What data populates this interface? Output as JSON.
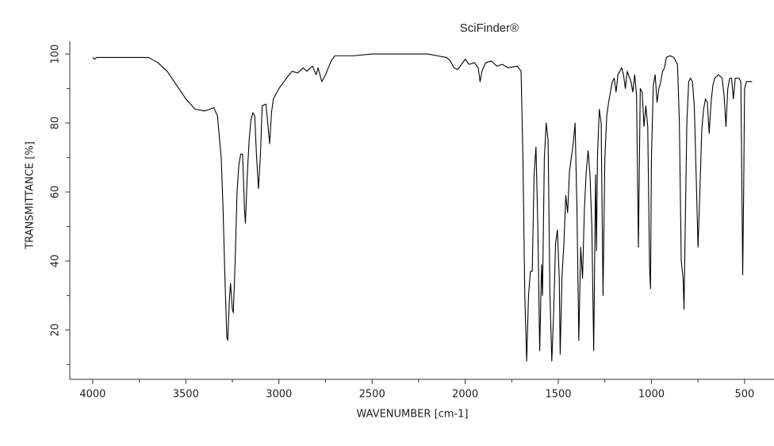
{
  "chart_data": {
    "type": "line",
    "title": "SciFinder®",
    "xlabel": "WAVENUMBER [cm-1]",
    "ylabel": "TRANSMITTANCE [%]",
    "x": [
      4000,
      3990,
      3980,
      3900,
      3800,
      3700,
      3650,
      3600,
      3550,
      3500,
      3450,
      3400,
      3370,
      3350,
      3330,
      3310,
      3300,
      3290,
      3280,
      3275,
      3265,
      3260,
      3250,
      3245,
      3235,
      3225,
      3215,
      3205,
      3195,
      3185,
      3180,
      3170,
      3160,
      3150,
      3140,
      3130,
      3120,
      3110,
      3100,
      3090,
      3070,
      3060,
      3050,
      3040,
      3030,
      3000,
      2960,
      2930,
      2900,
      2870,
      2850,
      2820,
      2800,
      2790,
      2770,
      2750,
      2720,
      2700,
      2600,
      2500,
      2400,
      2300,
      2200,
      2150,
      2100,
      2080,
      2060,
      2040,
      2020,
      2000,
      1980,
      1950,
      1930,
      1920,
      1910,
      1890,
      1860,
      1830,
      1800,
      1770,
      1720,
      1700,
      1690,
      1680,
      1670,
      1660,
      1650,
      1640,
      1630,
      1620,
      1610,
      1600,
      1590,
      1585,
      1575,
      1565,
      1555,
      1545,
      1535,
      1525,
      1515,
      1505,
      1495,
      1490,
      1480,
      1470,
      1460,
      1450,
      1440,
      1430,
      1420,
      1410,
      1400,
      1390,
      1380,
      1370,
      1360,
      1350,
      1340,
      1330,
      1320,
      1310,
      1300,
      1295,
      1290,
      1280,
      1270,
      1260,
      1250,
      1240,
      1230,
      1220,
      1210,
      1200,
      1190,
      1180,
      1160,
      1150,
      1140,
      1130,
      1110,
      1100,
      1090,
      1080,
      1070,
      1060,
      1050,
      1040,
      1030,
      1020,
      1010,
      1005,
      1000,
      990,
      980,
      970,
      960,
      950,
      940,
      930,
      920,
      900,
      880,
      860,
      850,
      840,
      830,
      825,
      820,
      810,
      800,
      790,
      780,
      770,
      760,
      750,
      740,
      730,
      720,
      710,
      700,
      690,
      680,
      670,
      660,
      640,
      620,
      610,
      600,
      590,
      580,
      570,
      560,
      550,
      530,
      520,
      510,
      505,
      500,
      490,
      480,
      470,
      460
    ],
    "values": [
      99,
      98.5,
      99,
      99,
      99,
      99,
      97.5,
      95,
      91,
      87,
      84,
      83.5,
      84,
      84.5,
      82,
      70,
      55,
      35,
      18,
      17,
      30,
      33.5,
      26,
      25,
      40,
      60,
      68,
      71,
      71,
      55,
      51,
      65,
      75,
      81,
      83,
      82,
      70,
      61,
      70,
      85,
      85.5,
      80,
      74,
      83,
      87,
      90,
      93,
      95,
      94.5,
      96,
      95,
      96.5,
      94,
      96,
      92,
      94,
      98,
      99.5,
      99.5,
      100,
      100,
      100,
      100,
      99.5,
      99,
      98,
      96,
      95.5,
      97,
      98.5,
      97,
      97.5,
      96,
      92,
      95,
      97.5,
      98,
      96.5,
      97,
      96,
      96.5,
      95,
      70,
      30,
      11,
      30,
      37,
      37,
      65,
      73,
      50,
      14,
      39,
      30,
      70,
      80,
      75,
      30,
      11,
      25,
      45,
      49,
      35,
      13,
      36,
      45,
      59,
      54,
      66,
      70,
      74,
      80,
      55,
      17,
      44,
      35,
      55,
      66,
      72,
      65,
      50,
      14,
      65,
      43,
      70,
      84,
      80,
      30,
      70,
      82,
      86,
      89,
      92,
      93,
      89,
      94,
      96,
      94,
      90,
      95,
      92,
      89,
      94,
      88,
      44,
      90,
      89,
      79,
      85,
      79,
      38,
      32,
      70,
      91,
      94,
      86,
      90,
      92,
      95,
      96,
      99,
      99.5,
      99,
      97,
      80,
      40,
      35,
      26,
      45,
      80,
      92,
      93,
      92,
      85,
      65,
      44,
      60,
      78,
      84,
      87,
      86,
      77,
      86,
      91,
      93,
      94,
      93,
      88,
      79,
      90,
      93,
      93,
      87,
      93,
      93,
      92,
      36,
      60,
      90,
      92,
      92,
      92,
      92
    ],
    "color": "#000000",
    "xlim": [
      4123,
      342
    ],
    "xticks": [
      4000,
      3500,
      3000,
      2500,
      2000,
      1500,
      1000,
      500
    ],
    "xminorticks": [
      3750,
      3250,
      2750,
      2250,
      1750,
      1250,
      750
    ],
    "ylim": [
      5.7,
      103.7
    ],
    "yticks": [
      20,
      40,
      60,
      80,
      100
    ],
    "yminorticks": [
      10,
      30,
      50,
      70,
      90
    ]
  }
}
